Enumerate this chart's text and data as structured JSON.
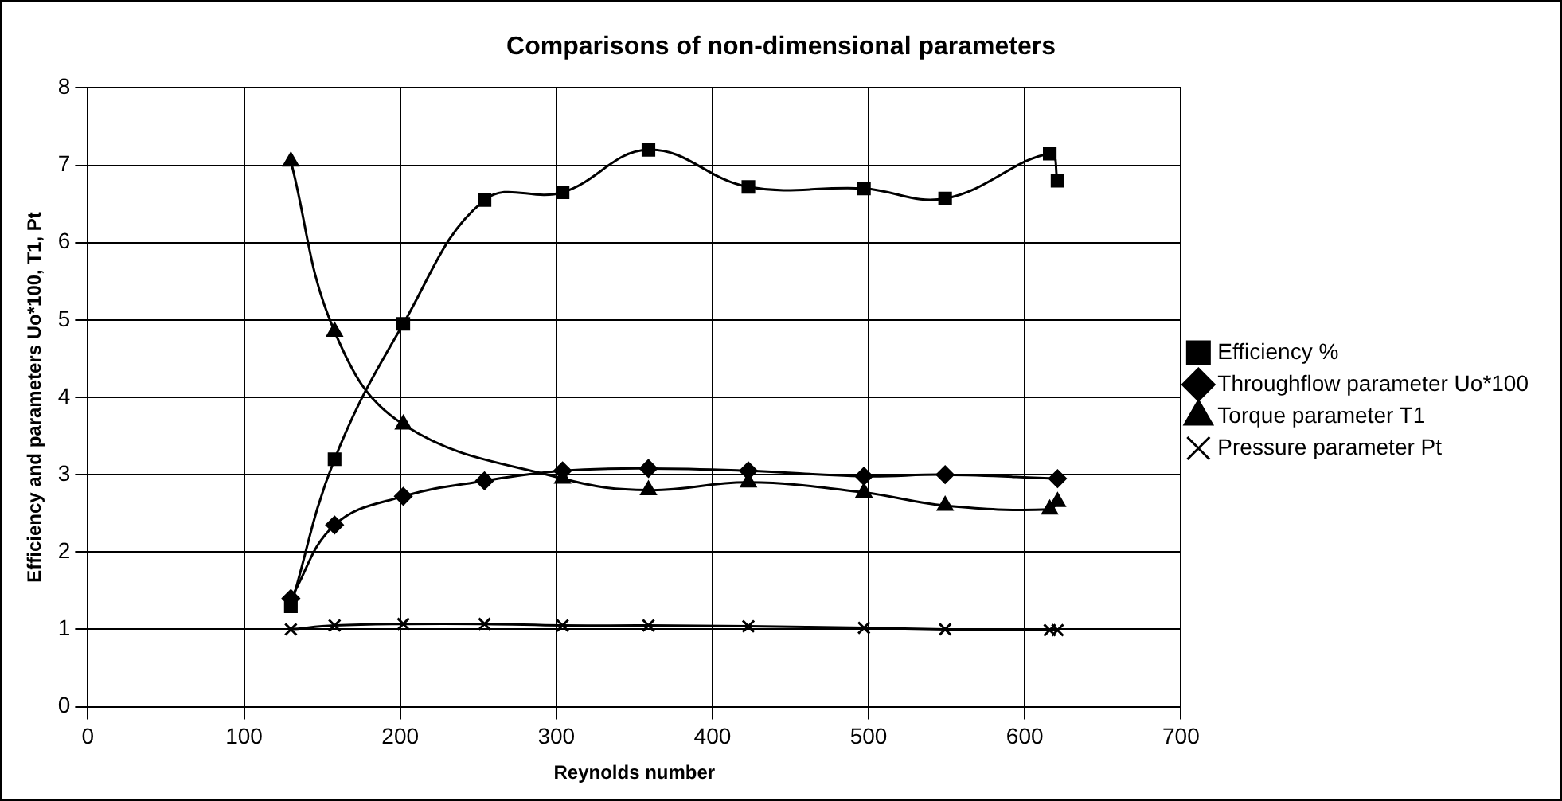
{
  "chart_data": {
    "type": "line",
    "title": "Comparisons of non-dimensional parameters",
    "xlabel": "Reynolds number",
    "ylabel": "Efficiency and parameters Uo*100, T1, Pt",
    "xlim": [
      0,
      700
    ],
    "xticks": [
      0,
      100,
      200,
      300,
      400,
      500,
      600,
      700
    ],
    "ylim": [
      0,
      8
    ],
    "yticks": [
      0,
      1,
      2,
      3,
      4,
      5,
      6,
      7,
      8
    ],
    "grid": true,
    "legend": "right",
    "series": [
      {
        "name": "Efficiency %",
        "color": "#000000",
        "marker": "square",
        "x": [
          130,
          158,
          202,
          254,
          304,
          359,
          423,
          497,
          549,
          616,
          621
        ],
        "values": [
          1.3,
          3.2,
          4.95,
          6.55,
          6.65,
          7.2,
          6.72,
          6.7,
          6.57,
          7.15,
          6.8
        ]
      },
      {
        "name": "Throughflow parameter Uo*100",
        "color": "#000000",
        "marker": "diamond",
        "x": [
          130,
          158,
          202,
          254,
          304,
          359,
          423,
          497,
          549,
          621
        ],
        "values": [
          1.4,
          2.35,
          2.72,
          2.92,
          3.05,
          3.08,
          3.05,
          2.98,
          3.0,
          2.95
        ]
      },
      {
        "name": "Torque parameter T1",
        "color": "#000000",
        "marker": "triangle",
        "x": [
          130,
          158,
          202,
          254,
          304,
          359,
          423,
          497,
          549,
          616,
          621
        ],
        "values": [
          7.05,
          4.85,
          3.65,
          null,
          2.95,
          2.8,
          2.9,
          2.77,
          2.6,
          2.55,
          2.65
        ]
      },
      {
        "name": "Pressure parameter Pt",
        "color": "#000000",
        "marker": "cross",
        "x": [
          130,
          158,
          202,
          254,
          304,
          359,
          423,
          497,
          549,
          616,
          621
        ],
        "values": [
          1.0,
          1.05,
          1.07,
          1.07,
          1.05,
          1.05,
          1.04,
          1.02,
          1.0,
          0.99,
          0.99
        ]
      }
    ]
  }
}
